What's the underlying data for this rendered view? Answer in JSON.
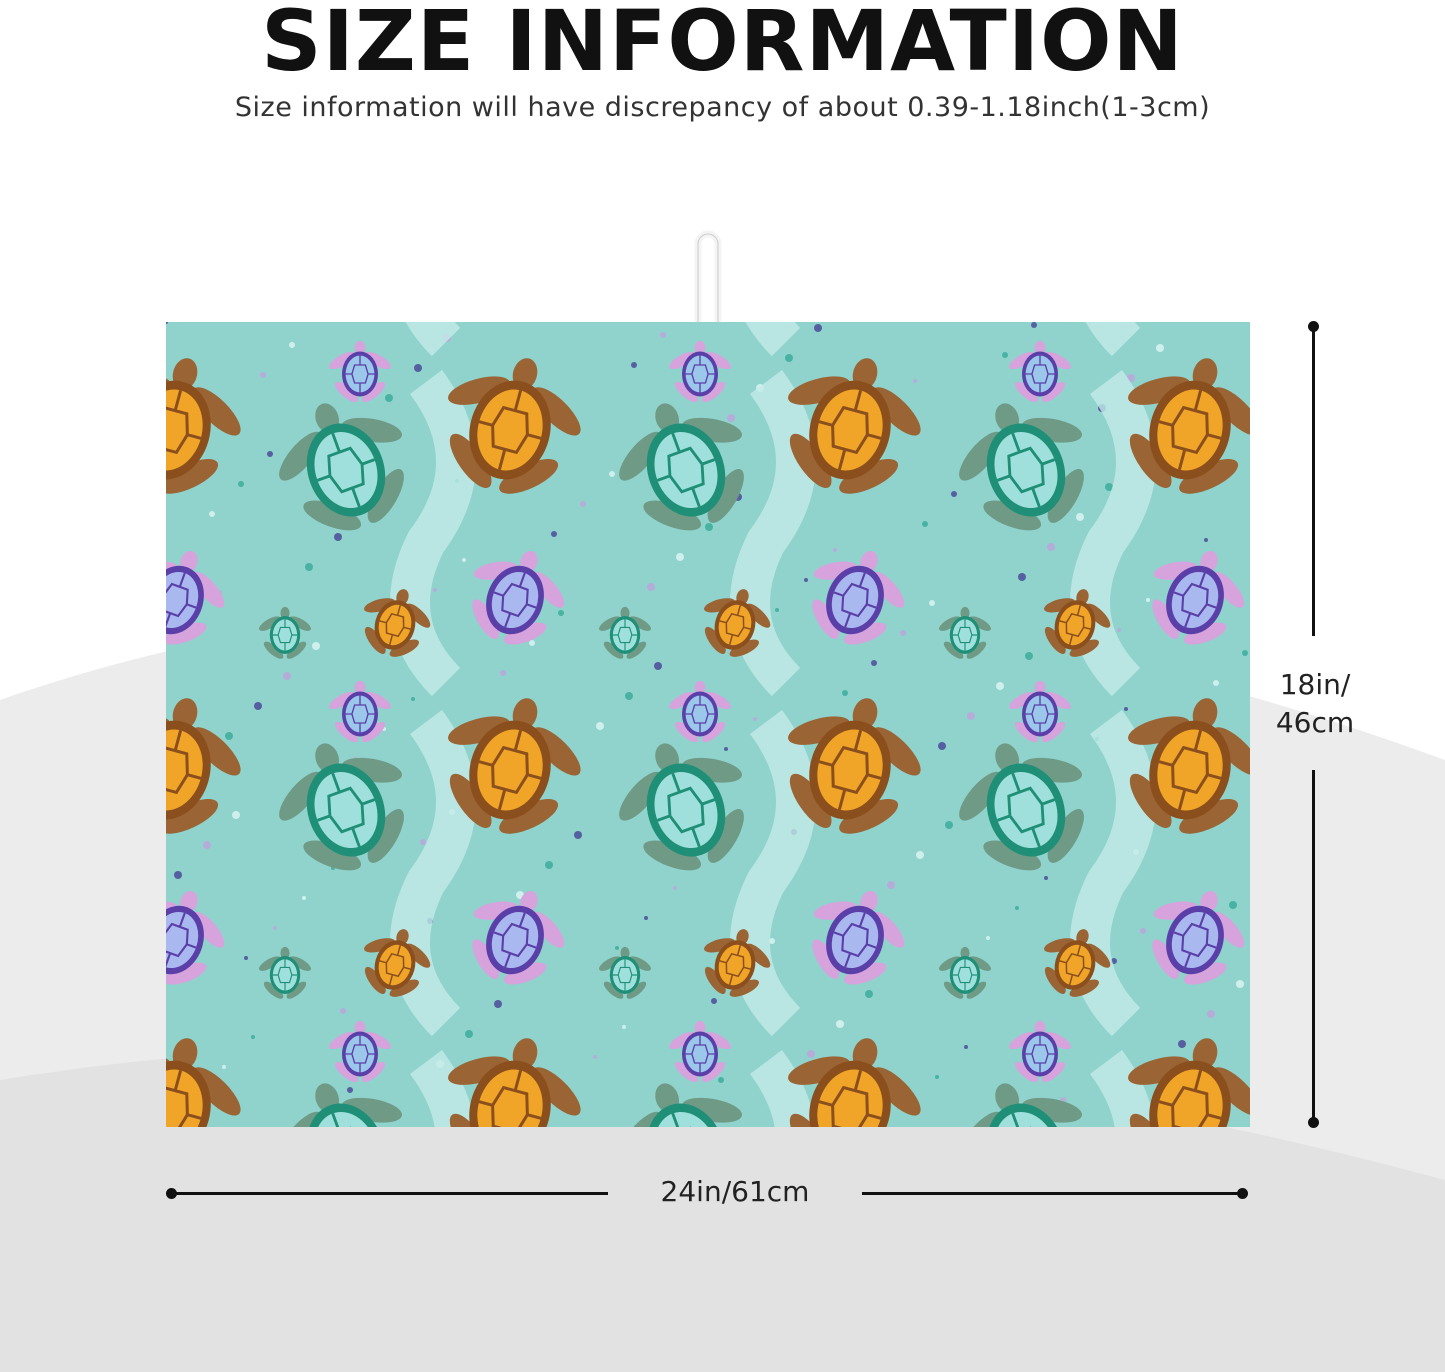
{
  "header": {
    "title": "SIZE INFORMATION",
    "subtitle": "Size information will have discrepancy of about 0.39-1.18inch(1-3cm)"
  },
  "dimensions": {
    "height_line1": "18in/",
    "height_line2": "46cm",
    "width_label": "24in/61cm"
  },
  "colors": {
    "mat_background": "#8fd3cc",
    "orange_turtle": "#f0a428",
    "brown_flipper": "#9a6434",
    "green_turtle": "#1f8f77",
    "purple_turtle": "#5b3fa8"
  }
}
